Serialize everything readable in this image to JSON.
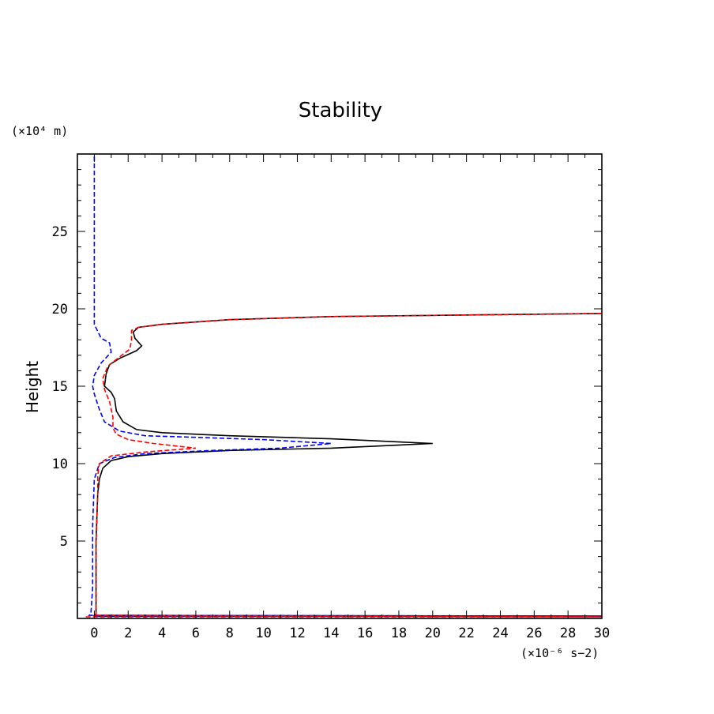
{
  "chart_data": {
    "type": "line",
    "title": "Stability",
    "xlabel": "",
    "ylabel": "Height",
    "x_unit_label": "(×10⁻⁶ s−2)",
    "y_unit_label": "(×10⁴ m)",
    "xlim": [
      -1,
      30
    ],
    "ylim": [
      0,
      30
    ],
    "x_ticks": [
      0,
      2,
      4,
      6,
      8,
      10,
      12,
      14,
      16,
      18,
      20,
      22,
      24,
      26,
      28,
      30
    ],
    "y_ticks": [
      5,
      10,
      15,
      20,
      25
    ],
    "grid": false,
    "series": [
      {
        "color": "#000000",
        "dash": "solid",
        "points": [
          [
            0.0,
            0.15
          ],
          [
            30.0,
            0.15
          ],
          [
            0.0,
            0.2
          ],
          [
            0.1,
            0.3
          ],
          [
            0.1,
            5.0
          ],
          [
            0.2,
            8.0
          ],
          [
            0.3,
            9.0
          ],
          [
            0.5,
            9.7
          ],
          [
            1.0,
            10.2
          ],
          [
            2.0,
            10.45
          ],
          [
            4.0,
            10.65
          ],
          [
            8.0,
            10.85
          ],
          [
            14.0,
            11.0
          ],
          [
            20.0,
            11.3
          ],
          [
            14.0,
            11.6
          ],
          [
            8.0,
            11.8
          ],
          [
            4.0,
            12.0
          ],
          [
            2.5,
            12.2
          ],
          [
            1.7,
            12.7
          ],
          [
            1.3,
            13.4
          ],
          [
            1.2,
            14.2
          ],
          [
            1.0,
            14.6
          ],
          [
            0.6,
            15.0
          ],
          [
            0.7,
            15.8
          ],
          [
            0.9,
            16.4
          ],
          [
            1.5,
            16.8
          ],
          [
            2.5,
            17.3
          ],
          [
            2.8,
            17.6
          ],
          [
            2.4,
            18.1
          ],
          [
            2.3,
            18.5
          ],
          [
            2.6,
            18.8
          ],
          [
            4.0,
            19.0
          ],
          [
            8.0,
            19.3
          ],
          [
            14.0,
            19.5
          ],
          [
            22.0,
            19.6
          ],
          [
            30.0,
            19.7
          ]
        ]
      },
      {
        "color": "#0000ff",
        "dash": "dashed",
        "points": [
          [
            0.0,
            0.15
          ],
          [
            30.0,
            0.15
          ],
          [
            -0.3,
            0.2
          ],
          [
            -0.2,
            0.3
          ],
          [
            -0.1,
            2.0
          ],
          [
            -0.1,
            6.0
          ],
          [
            0.0,
            9.0
          ],
          [
            0.3,
            10.0
          ],
          [
            1.2,
            10.4
          ],
          [
            3.0,
            10.65
          ],
          [
            7.0,
            10.85
          ],
          [
            11.0,
            11.0
          ],
          [
            14.0,
            11.3
          ],
          [
            10.0,
            11.55
          ],
          [
            6.0,
            11.7
          ],
          [
            3.0,
            11.8
          ],
          [
            1.5,
            12.1
          ],
          [
            0.6,
            12.7
          ],
          [
            0.3,
            13.5
          ],
          [
            0.0,
            14.5
          ],
          [
            -0.1,
            15.0
          ],
          [
            0.0,
            15.7
          ],
          [
            0.4,
            16.5
          ],
          [
            1.0,
            17.2
          ],
          [
            0.9,
            17.8
          ],
          [
            0.4,
            18.1
          ],
          [
            0.0,
            19.0
          ],
          [
            0.0,
            22.0
          ],
          [
            0.0,
            30.0
          ]
        ]
      },
      {
        "color": "#ff0000",
        "dash": "dashed",
        "points": [
          [
            -0.5,
            0.1
          ],
          [
            30.0,
            0.1
          ],
          [
            0.0,
            0.2
          ],
          [
            0.1,
            0.3
          ],
          [
            0.1,
            5.0
          ],
          [
            0.2,
            8.0
          ],
          [
            0.2,
            9.2
          ],
          [
            0.3,
            10.0
          ],
          [
            1.0,
            10.5
          ],
          [
            3.0,
            10.75
          ],
          [
            6.0,
            11.0
          ],
          [
            3.5,
            11.3
          ],
          [
            2.0,
            11.55
          ],
          [
            1.3,
            11.9
          ],
          [
            1.1,
            12.3
          ],
          [
            1.1,
            13.0
          ],
          [
            0.9,
            14.0
          ],
          [
            0.6,
            14.8
          ],
          [
            0.5,
            15.5
          ],
          [
            0.8,
            16.3
          ],
          [
            1.5,
            16.9
          ],
          [
            2.1,
            17.4
          ],
          [
            2.2,
            18.0
          ],
          [
            2.2,
            18.6
          ],
          [
            2.6,
            18.8
          ],
          [
            4.0,
            19.0
          ],
          [
            8.0,
            19.3
          ],
          [
            14.0,
            19.5
          ],
          [
            22.0,
            19.6
          ],
          [
            30.0,
            19.7
          ]
        ]
      }
    ]
  }
}
